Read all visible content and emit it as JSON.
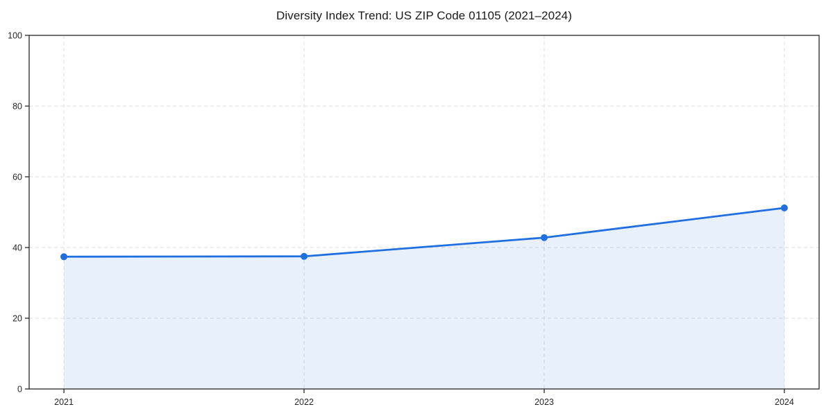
{
  "chart_data": {
    "type": "area",
    "title": "Diversity Index Trend: US ZIP Code 01105 (2021–2024)",
    "series_name": "Diversity Index",
    "x": [
      2021,
      2022,
      2023,
      2024
    ],
    "values": [
      37.4,
      37.5,
      42.8,
      51.2
    ],
    "xlabel": "",
    "ylabel": "",
    "ylim": [
      0,
      100
    ],
    "yticks": [
      0,
      20,
      40,
      60,
      80,
      100
    ],
    "xticks": [
      2021,
      2022,
      2023,
      2024
    ],
    "grid": true,
    "grid_style": "dashed",
    "legend": false,
    "line_color": "#1f6fe0",
    "marker": "circle",
    "fill_color": "#1f6fe0",
    "fill_opacity": 0.1,
    "grid_color": "#dedede",
    "axis_color": "#262626",
    "text_color": "#262626",
    "background_color": "#ffffff"
  }
}
